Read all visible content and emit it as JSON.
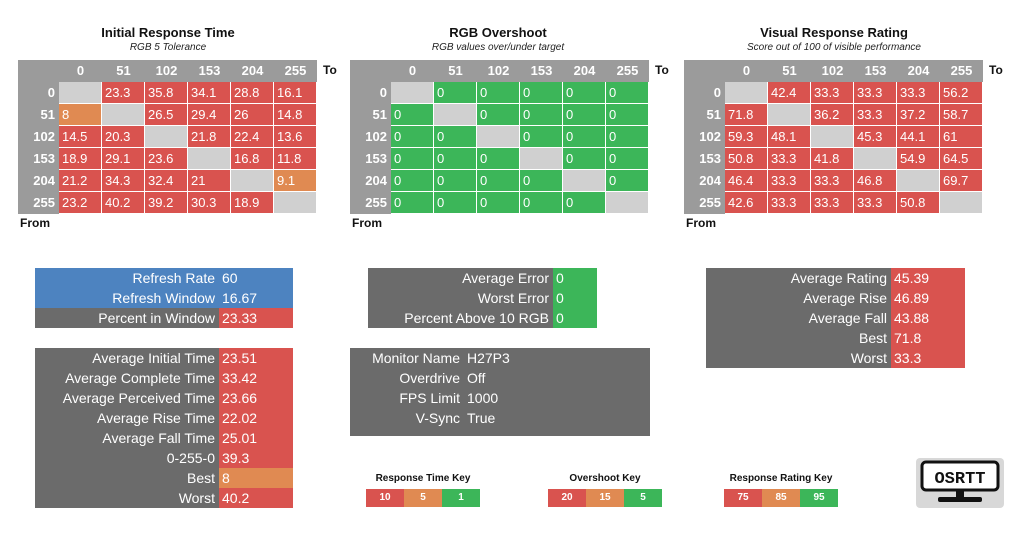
{
  "colors": {
    "red": "#d9534f",
    "orange": "#e08a52",
    "green": "#3cb659",
    "gray_header": "#9b9b9b",
    "gray_diag": "#d0d0d0",
    "blue": "#4d83c0",
    "panel_gray": "#6b6b6b"
  },
  "axis": {
    "to_label": "To",
    "from_label": "From",
    "columns": [
      "0",
      "51",
      "102",
      "153",
      "204",
      "255"
    ],
    "rows": [
      "0",
      "51",
      "102",
      "153",
      "204",
      "255"
    ]
  },
  "grids": [
    {
      "title": "Initial Response Time",
      "subtitle": "RGB 5 Tolerance",
      "cells": [
        [
          "",
          "23.3",
          "35.8",
          "34.1",
          "28.8",
          "16.1"
        ],
        [
          "8",
          "",
          "26.5",
          "29.4",
          "26",
          "14.8"
        ],
        [
          "14.5",
          "20.3",
          "",
          "21.8",
          "22.4",
          "13.6"
        ],
        [
          "18.9",
          "29.1",
          "23.6",
          "",
          "16.8",
          "11.8"
        ],
        [
          "21.2",
          "34.3",
          "32.4",
          "21",
          "",
          "9.1"
        ],
        [
          "23.2",
          "40.2",
          "39.2",
          "30.3",
          "18.9",
          ""
        ]
      ],
      "colors": [
        [
          "gray",
          "red",
          "red",
          "red",
          "red",
          "red"
        ],
        [
          "orange",
          "gray",
          "red",
          "red",
          "red",
          "red"
        ],
        [
          "red",
          "red",
          "gray",
          "red",
          "red",
          "red"
        ],
        [
          "red",
          "red",
          "red",
          "gray",
          "red",
          "red"
        ],
        [
          "red",
          "red",
          "red",
          "red",
          "gray",
          "orange"
        ],
        [
          "red",
          "red",
          "red",
          "red",
          "red",
          "gray"
        ]
      ]
    },
    {
      "title": "RGB Overshoot",
      "subtitle": "RGB values over/under target",
      "cells": [
        [
          "",
          "0",
          "0",
          "0",
          "0",
          "0"
        ],
        [
          "0",
          "",
          "0",
          "0",
          "0",
          "0"
        ],
        [
          "0",
          "0",
          "",
          "0",
          "0",
          "0"
        ],
        [
          "0",
          "0",
          "0",
          "",
          "0",
          "0"
        ],
        [
          "0",
          "0",
          "0",
          "0",
          "",
          "0"
        ],
        [
          "0",
          "0",
          "0",
          "0",
          "0",
          ""
        ]
      ],
      "colors": [
        [
          "gray",
          "green",
          "green",
          "green",
          "green",
          "green"
        ],
        [
          "green",
          "gray",
          "green",
          "green",
          "green",
          "green"
        ],
        [
          "green",
          "green",
          "gray",
          "green",
          "green",
          "green"
        ],
        [
          "green",
          "green",
          "green",
          "gray",
          "green",
          "green"
        ],
        [
          "green",
          "green",
          "green",
          "green",
          "gray",
          "green"
        ],
        [
          "green",
          "green",
          "green",
          "green",
          "green",
          "gray"
        ]
      ]
    },
    {
      "title": "Visual Response Rating",
      "subtitle": "Score out of 100 of visible performance",
      "cells": [
        [
          "",
          "42.4",
          "33.3",
          "33.3",
          "33.3",
          "56.2"
        ],
        [
          "71.8",
          "",
          "36.2",
          "33.3",
          "37.2",
          "58.7"
        ],
        [
          "59.3",
          "48.1",
          "",
          "45.3",
          "44.1",
          "61"
        ],
        [
          "50.8",
          "33.3",
          "41.8",
          "",
          "54.9",
          "64.5"
        ],
        [
          "46.4",
          "33.3",
          "33.3",
          "46.8",
          "",
          "69.7"
        ],
        [
          "42.6",
          "33.3",
          "33.3",
          "33.3",
          "50.8",
          ""
        ]
      ],
      "colors": [
        [
          "gray",
          "red",
          "red",
          "red",
          "red",
          "red"
        ],
        [
          "red",
          "gray",
          "red",
          "red",
          "red",
          "red"
        ],
        [
          "red",
          "red",
          "gray",
          "red",
          "red",
          "red"
        ],
        [
          "red",
          "red",
          "red",
          "gray",
          "red",
          "red"
        ],
        [
          "red",
          "red",
          "red",
          "red",
          "gray",
          "red"
        ],
        [
          "red",
          "red",
          "red",
          "red",
          "red",
          "gray"
        ]
      ]
    }
  ],
  "refresh_panel": [
    {
      "label": "Refresh Rate",
      "value": "60",
      "label_color": "blue",
      "value_color": "blue"
    },
    {
      "label": "Refresh Window",
      "value": "16.67",
      "label_color": "blue",
      "value_color": "blue"
    },
    {
      "label": "Percent in Window",
      "value": "23.33",
      "label_color": "gray",
      "value_color": "red"
    }
  ],
  "overshoot_panel": [
    {
      "label": "Average Error",
      "value": "0",
      "value_color": "green"
    },
    {
      "label": "Worst Error",
      "value": "0",
      "value_color": "green"
    },
    {
      "label": "Percent Above 10 RGB",
      "value": "0",
      "value_color": "green"
    }
  ],
  "rating_panel": [
    {
      "label": "Average Rating",
      "value": "45.39",
      "value_color": "red"
    },
    {
      "label": "Average Rise",
      "value": "46.89",
      "value_color": "red"
    },
    {
      "label": "Average Fall",
      "value": "43.88",
      "value_color": "red"
    },
    {
      "label": "Best",
      "value": "71.8",
      "value_color": "red"
    },
    {
      "label": "Worst",
      "value": "33.3",
      "value_color": "red"
    }
  ],
  "time_panel": [
    {
      "label": "Average Initial Time",
      "value": "23.51",
      "value_color": "red"
    },
    {
      "label": "Average Complete Time",
      "value": "33.42",
      "value_color": "red"
    },
    {
      "label": "Average Perceived Time",
      "value": "23.66",
      "value_color": "red"
    },
    {
      "label": "Average Rise Time",
      "value": "22.02",
      "value_color": "red"
    },
    {
      "label": "Average Fall Time",
      "value": "25.01",
      "value_color": "red"
    },
    {
      "label": "0-255-0",
      "value": "39.3",
      "value_color": "red"
    },
    {
      "label": "Best",
      "value": "8",
      "value_color": "orange"
    },
    {
      "label": "Worst",
      "value": "40.2",
      "value_color": "red"
    }
  ],
  "monitor_panel": [
    {
      "label": "Monitor Name",
      "value": "H27P3"
    },
    {
      "label": "Overdrive",
      "value": "Off"
    },
    {
      "label": "FPS Limit",
      "value": "1000"
    },
    {
      "label": "V-Sync",
      "value": "True"
    }
  ],
  "keys": [
    {
      "title": "Response Time Key",
      "values": [
        "10",
        "5",
        "1"
      ],
      "colors": [
        "red",
        "orange",
        "green"
      ]
    },
    {
      "title": "Overshoot Key",
      "values": [
        "20",
        "15",
        "5"
      ],
      "colors": [
        "red",
        "orange",
        "green"
      ]
    },
    {
      "title": "Response Rating Key",
      "values": [
        "75",
        "85",
        "95"
      ],
      "colors": [
        "red",
        "orange",
        "green"
      ]
    }
  ],
  "logo": {
    "text": "OSRTT",
    "icon": "monitor-icon"
  }
}
